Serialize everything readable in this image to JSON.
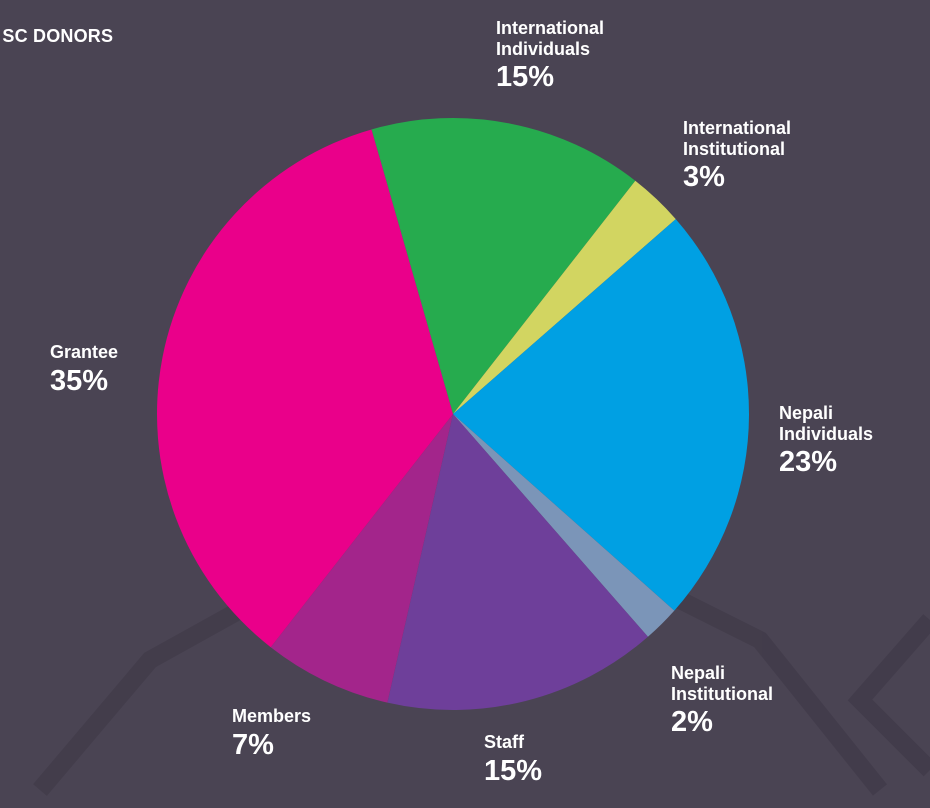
{
  "title": "F SC DONORS",
  "colors": {
    "background": "#4a4453"
  },
  "chart_data": {
    "type": "pie",
    "title": "F SC DONORS",
    "slices": [
      {
        "key": "intl_ind",
        "name_lines": [
          "International",
          "Individuals"
        ],
        "label": "International Individuals",
        "value": 15,
        "value_label": "15%",
        "color": "#26ab4e"
      },
      {
        "key": "intl_inst",
        "name_lines": [
          "International",
          "Institutional"
        ],
        "label": "International Institutional",
        "value": 3,
        "value_label": "3%",
        "color": "#d2d561"
      },
      {
        "key": "nep_ind",
        "name_lines": [
          "Nepali",
          "Individuals"
        ],
        "label": "Nepali Individuals",
        "value": 23,
        "value_label": "23%",
        "color": "#00a0e3"
      },
      {
        "key": "nep_inst",
        "name_lines": [
          "Nepali",
          "Institutional"
        ],
        "label": "Nepali Institutional",
        "value": 2,
        "value_label": "2%",
        "color": "#7b95b8"
      },
      {
        "key": "staff",
        "name_lines": [
          "Staff"
        ],
        "label": "Staff",
        "value": 15,
        "value_label": "15%",
        "color": "#6e3f9a"
      },
      {
        "key": "members",
        "name_lines": [
          "Members"
        ],
        "label": "Members",
        "value": 7,
        "value_label": "7%",
        "color": "#a3258b"
      },
      {
        "key": "grantee",
        "name_lines": [
          "Grantee"
        ],
        "label": "Grantee",
        "value": 35,
        "value_label": "35%",
        "color": "#ea008a"
      }
    ]
  }
}
